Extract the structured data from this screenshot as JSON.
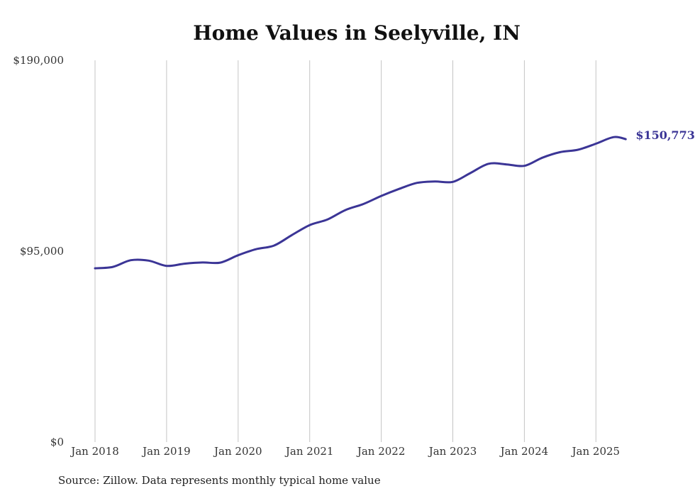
{
  "chart_data": {
    "type": "line",
    "title": "Home Values in Seelyville, IN",
    "xlabel": "",
    "ylabel": "",
    "ylim": [
      0,
      190000
    ],
    "y_ticks": [
      {
        "value": 0,
        "label": "$0"
      },
      {
        "value": 95000,
        "label": "$95,000"
      },
      {
        "value": 190000,
        "label": "$190,000"
      }
    ],
    "x_ticks": [
      {
        "value": 2018,
        "label": "Jan 2018"
      },
      {
        "value": 2019,
        "label": "Jan 2019"
      },
      {
        "value": 2020,
        "label": "Jan 2020"
      },
      {
        "value": 2021,
        "label": "Jan 2021"
      },
      {
        "value": 2022,
        "label": "Jan 2022"
      },
      {
        "value": 2023,
        "label": "Jan 2023"
      },
      {
        "value": 2024,
        "label": "Jan 2024"
      },
      {
        "value": 2025,
        "label": "Jan 2025"
      }
    ],
    "grid": "vertical",
    "line_color": "#3b3596",
    "end_label": "$150,773",
    "series": [
      {
        "values": [
          {
            "x": "2018-01",
            "y": 86500
          },
          {
            "x": "2018-04",
            "y": 87200
          },
          {
            "x": "2018-07",
            "y": 90500
          },
          {
            "x": "2018-10",
            "y": 90300
          },
          {
            "x": "2019-01",
            "y": 87700
          },
          {
            "x": "2019-04",
            "y": 88800
          },
          {
            "x": "2019-07",
            "y": 89400
          },
          {
            "x": "2019-10",
            "y": 89300
          },
          {
            "x": "2020-01",
            "y": 93000
          },
          {
            "x": "2020-04",
            "y": 96000
          },
          {
            "x": "2020-07",
            "y": 97800
          },
          {
            "x": "2020-10",
            "y": 103000
          },
          {
            "x": "2021-01",
            "y": 108000
          },
          {
            "x": "2021-04",
            "y": 110800
          },
          {
            "x": "2021-07",
            "y": 115500
          },
          {
            "x": "2021-10",
            "y": 118500
          },
          {
            "x": "2022-01",
            "y": 122500
          },
          {
            "x": "2022-04",
            "y": 126000
          },
          {
            "x": "2022-07",
            "y": 129000
          },
          {
            "x": "2022-10",
            "y": 129700
          },
          {
            "x": "2023-01",
            "y": 129500
          },
          {
            "x": "2023-04",
            "y": 134000
          },
          {
            "x": "2023-07",
            "y": 138500
          },
          {
            "x": "2023-10",
            "y": 138200
          },
          {
            "x": "2024-01",
            "y": 137500
          },
          {
            "x": "2024-04",
            "y": 141500
          },
          {
            "x": "2024-07",
            "y": 144300
          },
          {
            "x": "2024-10",
            "y": 145500
          },
          {
            "x": "2025-01",
            "y": 148500
          },
          {
            "x": "2025-04",
            "y": 151800
          },
          {
            "x": "2025-06",
            "y": 150773
          }
        ]
      }
    ],
    "source": "Source: Zillow. Data represents monthly typical home value"
  }
}
